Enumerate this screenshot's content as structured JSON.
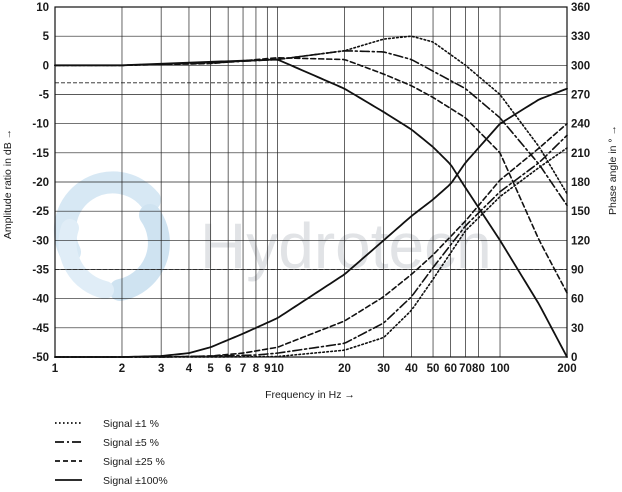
{
  "watermark": {
    "text": "Hydrotech"
  },
  "chart_data": {
    "type": "line",
    "xlabel": "Frequency in Hz →",
    "ylabel_left": "Amplitude ratio in dB →",
    "ylabel_right": "Phase angle in ° →",
    "x_scale": "log",
    "xlim": [
      1,
      200
    ],
    "ylim_left": [
      -50,
      10
    ],
    "ylim_right": [
      0,
      360
    ],
    "x_ticks": [
      1,
      2,
      3,
      4,
      5,
      6,
      7,
      8,
      9,
      10,
      20,
      30,
      40,
      50,
      60,
      70,
      80,
      100,
      200
    ],
    "x_tick_labels": [
      "1",
      "2",
      "3",
      "4",
      "5",
      "6",
      "7",
      "8",
      "9",
      "10",
      "20",
      "30",
      "40",
      "50",
      "60",
      "70",
      "80",
      "100",
      "200"
    ],
    "y_ticks_left": [
      10,
      5,
      0,
      -5,
      -10,
      -15,
      -20,
      -25,
      -30,
      -35,
      -40,
      -45,
      -50
    ],
    "y_tick_labels_left": [
      "10",
      "5",
      "0",
      "-5",
      "-10",
      "-15",
      "-20",
      "-25",
      "-30",
      "-35",
      "-40",
      "-45",
      "-50"
    ],
    "y_ticks_right": [
      360,
      330,
      300,
      270,
      240,
      210,
      180,
      150,
      120,
      90,
      60,
      30,
      0
    ],
    "y_tick_labels_right": [
      "360",
      "330",
      "300",
      "270",
      "240",
      "210",
      "180",
      "150",
      "120",
      "90",
      "60",
      "30",
      "0"
    ],
    "reference_lines_db": [
      -3,
      -35
    ],
    "grid": true,
    "legend_position": "bottom-left",
    "series": [
      {
        "name": "Signal ±1 %",
        "dash": "dotted",
        "amplitude_db": {
          "x": [
            1,
            2,
            5,
            10,
            20,
            30,
            40,
            50,
            70,
            100,
            150,
            200
          ],
          "y": [
            0,
            0,
            0.5,
            1,
            2.5,
            4.5,
            5,
            4,
            0,
            -5,
            -14,
            -22
          ]
        },
        "phase_deg": {
          "x": [
            1,
            3,
            5,
            10,
            20,
            30,
            40,
            50,
            70,
            100,
            150,
            200
          ],
          "y": [
            0,
            0,
            0,
            0.5,
            7,
            20,
            48,
            80,
            130,
            165,
            195,
            215
          ]
        }
      },
      {
        "name": "Signal ±5 %",
        "dash": "dash-dot",
        "amplitude_db": {
          "x": [
            1,
            2,
            5,
            10,
            20,
            30,
            40,
            50,
            70,
            100,
            150,
            200
          ],
          "y": [
            0,
            0,
            0.4,
            1,
            2.5,
            2.3,
            1,
            -1,
            -4,
            -9,
            -17,
            -24
          ]
        },
        "phase_deg": {
          "x": [
            1,
            3,
            5,
            8,
            10,
            20,
            30,
            40,
            50,
            70,
            100,
            150,
            200
          ],
          "y": [
            0,
            0,
            1,
            2,
            4,
            14,
            35,
            62,
            92,
            135,
            170,
            200,
            228
          ]
        }
      },
      {
        "name": "Signal ±25 %",
        "dash": "dashed",
        "amplitude_db": {
          "x": [
            1,
            2,
            5,
            10,
            20,
            30,
            40,
            50,
            70,
            100,
            150,
            200
          ],
          "y": [
            0,
            0,
            0.3,
            1.3,
            1,
            -1.5,
            -3.5,
            -5.5,
            -9,
            -15,
            -30,
            -39
          ]
        },
        "phase_deg": {
          "x": [
            1,
            3,
            5,
            7,
            10,
            20,
            30,
            40,
            50,
            70,
            100,
            150,
            200
          ],
          "y": [
            0,
            0,
            1,
            4,
            10,
            37,
            62,
            85,
            105,
            140,
            182,
            215,
            240
          ]
        }
      },
      {
        "name": "Signal ±100%",
        "dash": "solid",
        "amplitude_db": {
          "x": [
            1,
            2,
            5,
            10,
            20,
            30,
            40,
            50,
            60,
            70,
            100,
            150,
            200
          ],
          "y": [
            0,
            0,
            0.6,
            1,
            -4,
            -8,
            -11,
            -14,
            -17,
            -21,
            -30,
            -41,
            -50
          ]
        },
        "phase_deg": {
          "x": [
            1,
            2,
            3,
            4,
            5,
            7,
            10,
            20,
            30,
            40,
            50,
            60,
            70,
            100,
            150,
            200
          ],
          "y": [
            0,
            0,
            1,
            4,
            10,
            24,
            40,
            85,
            120,
            145,
            162,
            178,
            200,
            240,
            265,
            276
          ]
        }
      }
    ]
  }
}
